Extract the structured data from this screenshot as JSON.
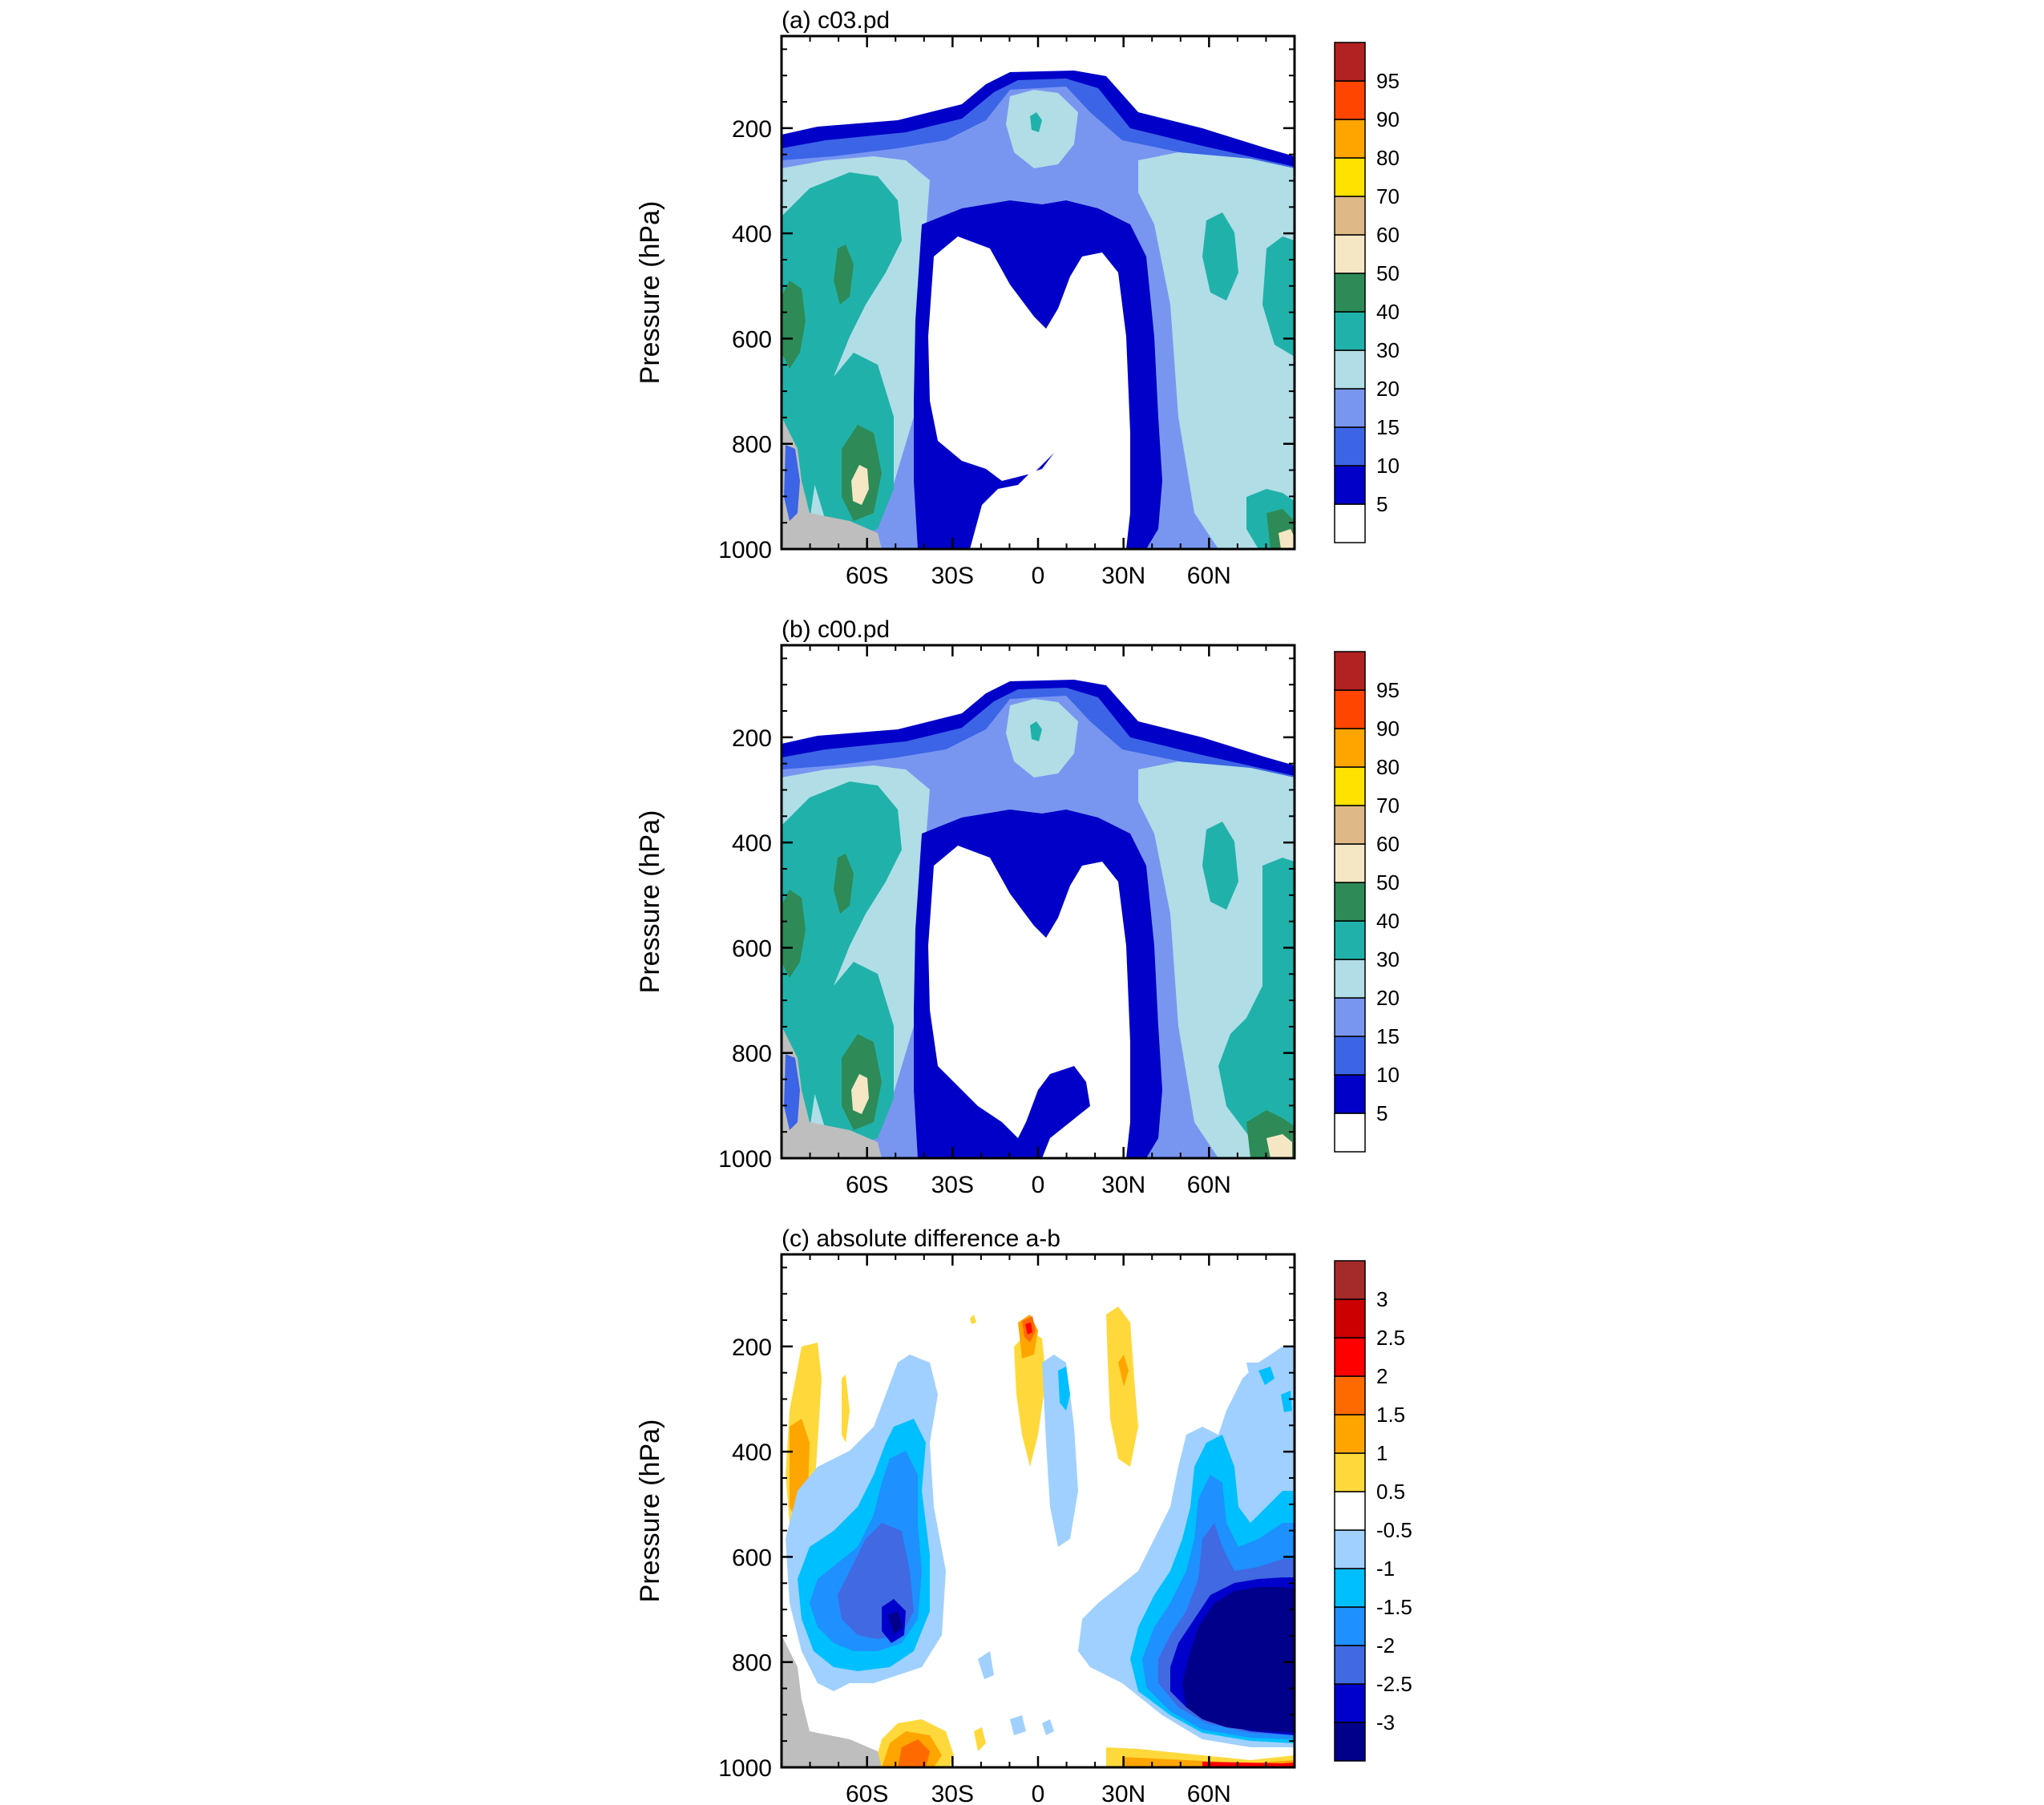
{
  "chart_data": [
    {
      "type": "heatmap",
      "title": "(a) c03.pd",
      "xlabel": "",
      "ylabel": "Pressure (hPa)",
      "x_ticks": [
        "60S",
        "30S",
        "0",
        "30N",
        "60N"
      ],
      "x_tick_values": [
        -60,
        -30,
        0,
        30,
        60
      ],
      "xlim": [
        -90,
        90
      ],
      "y_ticks": [
        "200",
        "400",
        "600",
        "800",
        "1000"
      ],
      "y_tick_values": [
        200,
        400,
        600,
        800,
        1000
      ],
      "ylim": [
        1000,
        25
      ],
      "colorbar": {
        "labels": [
          "5",
          "10",
          "15",
          "20",
          "30",
          "40",
          "50",
          "60",
          "70",
          "80",
          "90",
          "95"
        ],
        "colors": [
          "#ffffff",
          "#0000c8",
          "#3c64e6",
          "#7896f0",
          "#b0dde6",
          "#20b2aa",
          "#2e8b57",
          "#f5e6c4",
          "#deb887",
          "#ffe200",
          "#ffa500",
          "#ff4500",
          "#b22222"
        ]
      }
    },
    {
      "type": "heatmap",
      "title": "(b) c00.pd",
      "xlabel": "",
      "ylabel": "Pressure (hPa)",
      "x_ticks": [
        "60S",
        "30S",
        "0",
        "30N",
        "60N"
      ],
      "x_tick_values": [
        -60,
        -30,
        0,
        30,
        60
      ],
      "xlim": [
        -90,
        90
      ],
      "y_ticks": [
        "200",
        "400",
        "600",
        "800",
        "1000"
      ],
      "y_tick_values": [
        200,
        400,
        600,
        800,
        1000
      ],
      "ylim": [
        1000,
        25
      ],
      "colorbar": {
        "labels": [
          "5",
          "10",
          "15",
          "20",
          "30",
          "40",
          "50",
          "60",
          "70",
          "80",
          "90",
          "95"
        ],
        "colors": [
          "#ffffff",
          "#0000c8",
          "#3c64e6",
          "#7896f0",
          "#b0dde6",
          "#20b2aa",
          "#2e8b57",
          "#f5e6c4",
          "#deb887",
          "#ffe200",
          "#ffa500",
          "#ff4500",
          "#b22222"
        ]
      }
    },
    {
      "type": "heatmap",
      "title": "(c) absolute difference a-b",
      "xlabel": "",
      "ylabel": "Pressure (hPa)",
      "x_ticks": [
        "60S",
        "30S",
        "0",
        "30N",
        "60N"
      ],
      "x_tick_values": [
        -60,
        -30,
        0,
        30,
        60
      ],
      "xlim": [
        -90,
        90
      ],
      "y_ticks": [
        "200",
        "400",
        "600",
        "800",
        "1000"
      ],
      "y_tick_values": [
        200,
        400,
        600,
        800,
        1000
      ],
      "ylim": [
        1000,
        25
      ],
      "colorbar": {
        "labels": [
          "-3",
          "-2.5",
          "-2",
          "-1.5",
          "-1",
          "-0.5",
          "0.5",
          "1",
          "1.5",
          "2",
          "2.5",
          "3"
        ],
        "colors": [
          "#00008b",
          "#0000cd",
          "#4169e1",
          "#1e90ff",
          "#00bfff",
          "#a0d0ff",
          "#ffffff",
          "#ffd93b",
          "#ffa500",
          "#ff6a00",
          "#ff0000",
          "#cd0000",
          "#a52a2a"
        ]
      }
    }
  ]
}
